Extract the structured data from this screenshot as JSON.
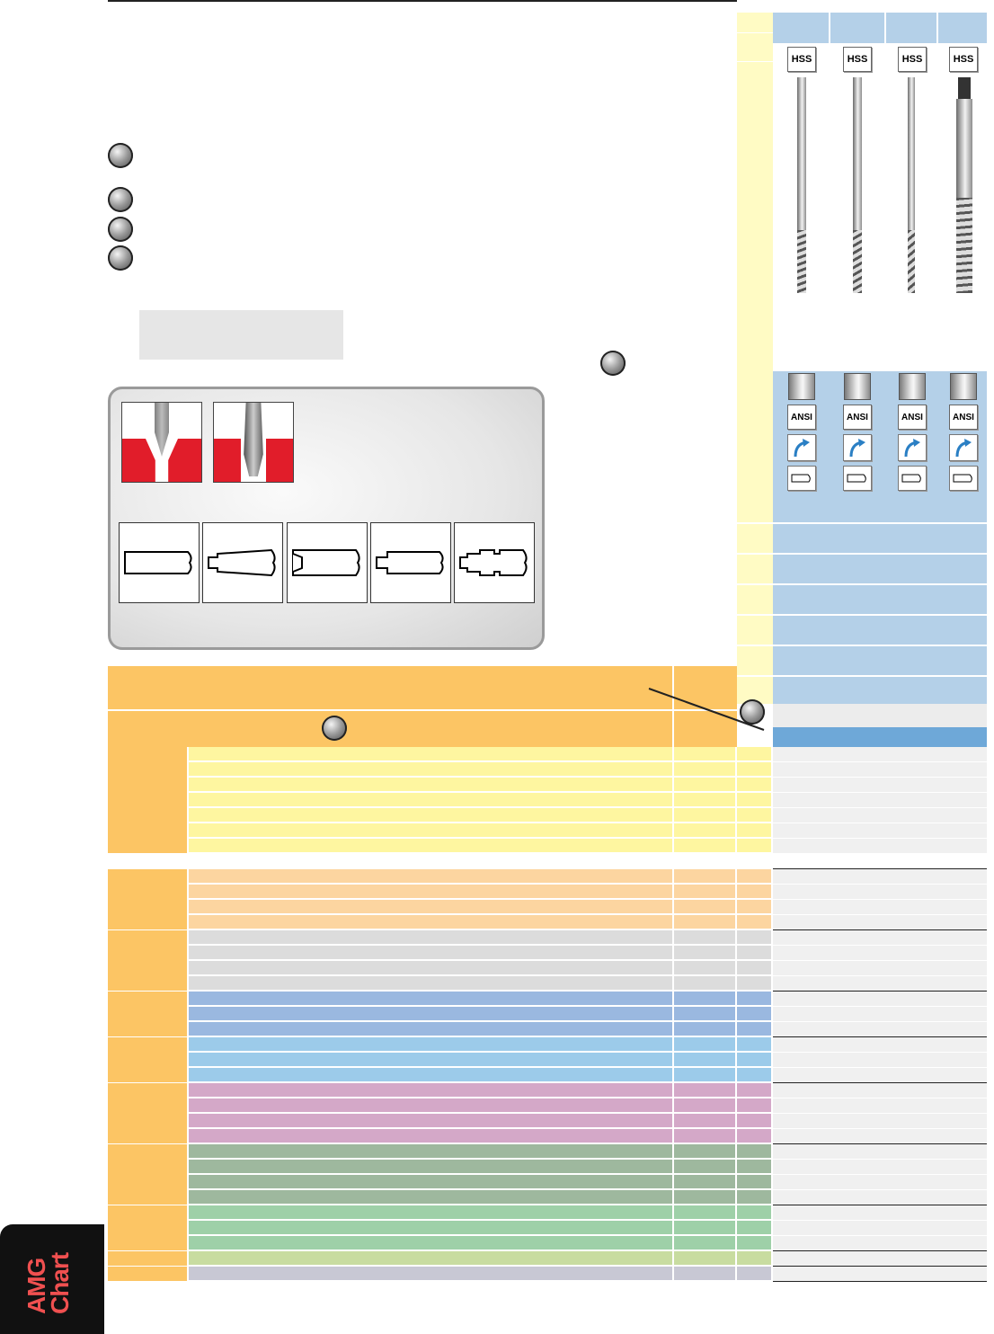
{
  "icons": {
    "marker": "numbered-callout-marker",
    "hss": "hss-badge-icon",
    "ansi": "ansi-badge-icon",
    "shank": "cylindrical-shank-icon",
    "helix": "right-hand-flute-icon",
    "tool": "straight-shank-tool-icon"
  },
  "badges": {
    "hss": [
      "HSS",
      "HSS",
      "HSS",
      "HSS"
    ],
    "ansi": [
      "ANSI",
      "ANSI",
      "ANSI",
      "ANSI"
    ]
  },
  "side_tab": {
    "line1": "AMG",
    "line2": "Chart"
  },
  "colors": {
    "orange_header": "#fcc564",
    "pale_yellow": "#fffcc4",
    "group_yellow": "#fef6a0",
    "group_peach": "#fcd5a0",
    "group_grey": "#dcdcdc",
    "group_blue": "#9ab8e0",
    "group_lightblue": "#9ccbea",
    "group_pink": "#d4a8c8",
    "group_green": "#9eb89e",
    "group_mint": "#9ed0a8",
    "group_lime": "#c8dca0",
    "group_lavender": "#c8c8d4",
    "spec_blue": "#b4d0e8",
    "header_blue": "#6ea8d8",
    "amg_red": "#e83838"
  }
}
